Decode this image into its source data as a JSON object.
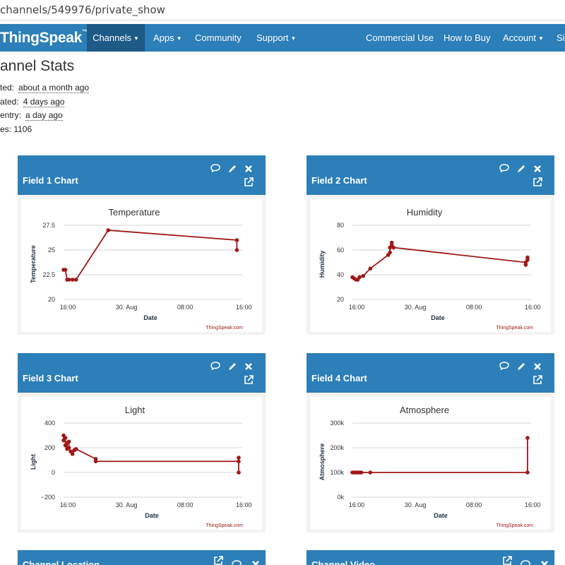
{
  "browser": {
    "url": "channels/549976/private_show"
  },
  "nav": {
    "brand": "ThingSpeak",
    "brand_tm": "™",
    "items": [
      {
        "label": "Channels",
        "dropdown": true,
        "active": true
      },
      {
        "label": "Apps",
        "dropdown": true
      },
      {
        "label": "Community"
      },
      {
        "label": "Support",
        "dropdown": true
      },
      {
        "label": "Commercial Use"
      },
      {
        "label": "How to Buy"
      },
      {
        "label": "Account",
        "dropdown": true
      },
      {
        "label": "Si"
      }
    ]
  },
  "stats": {
    "title": "annel Stats",
    "created_label": "ted:",
    "created_value": "about a month ago",
    "updated_label": "ated:",
    "updated_value": "4 days ago",
    "entry_label": "entry:",
    "entry_value": "a day ago",
    "entries_label": "es: ",
    "entries_value": "1106"
  },
  "cards": [
    {
      "title": "Field 1 Chart"
    },
    {
      "title": "Field 2 Chart"
    },
    {
      "title": "Field 3 Chart"
    },
    {
      "title": "Field 4 Chart"
    }
  ],
  "bottom_cards": [
    {
      "title": "Channel Location"
    },
    {
      "title": "Channel Video"
    }
  ],
  "colors": {
    "nav": "#2c7fb8",
    "nav_active": "#1d5a86",
    "series": "#a01818"
  },
  "chart_data": [
    {
      "type": "line",
      "title": "Temperature",
      "xlabel": "Date",
      "ylabel": "Temperature",
      "credit": "ThingSpeak.com",
      "x_ticks": [
        "16:00",
        "30. Aug",
        "08:00",
        "16:00"
      ],
      "y_ticks": [
        "27.5",
        "25",
        "22.5",
        "20"
      ],
      "ylim": [
        20,
        27.5
      ],
      "series": [
        {
          "x": [
            0.0,
            0.01,
            0.02,
            0.03,
            0.05,
            0.07,
            0.25,
            0.97,
            0.97
          ],
          "y": [
            23,
            23,
            22,
            22,
            22,
            22,
            27,
            26,
            25
          ]
        }
      ]
    },
    {
      "type": "line",
      "title": "Humidity",
      "xlabel": "Date",
      "ylabel": "Humidity",
      "credit": "ThingSpeak.com",
      "x_ticks": [
        "16:00",
        "30. Aug",
        "08:00",
        "16:00"
      ],
      "y_ticks": [
        "80",
        "60",
        "40",
        "20"
      ],
      "ylim": [
        20,
        80
      ],
      "series": [
        {
          "x": [
            0.0,
            0.01,
            0.02,
            0.03,
            0.04,
            0.06,
            0.1,
            0.2,
            0.21,
            0.21,
            0.22,
            0.22,
            0.23,
            0.97,
            0.97,
            0.98,
            0.98
          ],
          "y": [
            38,
            37,
            36,
            36,
            38,
            39,
            45,
            56,
            58,
            62,
            64,
            66,
            62,
            50,
            48,
            52,
            54
          ]
        }
      ]
    },
    {
      "type": "line",
      "title": "Light",
      "xlabel": "Date",
      "ylabel": "Light",
      "credit": "ThingSpeak.com",
      "x_ticks": [
        "16:00",
        "30. Aug",
        "08:00",
        "16:00"
      ],
      "y_ticks": [
        "400",
        "200",
        "0",
        "−200"
      ],
      "ylim": [
        -200,
        400
      ],
      "series": [
        {
          "x": [
            0.0,
            0.0,
            0.01,
            0.01,
            0.02,
            0.02,
            0.03,
            0.03,
            0.04,
            0.05,
            0.06,
            0.07,
            0.18,
            0.18,
            0.98,
            0.98,
            0.98
          ],
          "y": [
            300,
            260,
            280,
            220,
            190,
            240,
            250,
            200,
            170,
            150,
            180,
            190,
            110,
            90,
            90,
            120,
            0
          ]
        }
      ]
    },
    {
      "type": "line",
      "title": "Atmosphere",
      "xlabel": "Date",
      "ylabel": "Atmosphere",
      "credit": "ThingSpeak.com",
      "x_ticks": [
        "16:00",
        "30. Aug",
        "08:00",
        "16:00"
      ],
      "y_ticks": [
        "300k",
        "200k",
        "100k",
        "0k"
      ],
      "ylim": [
        0,
        300000
      ],
      "series": [
        {
          "x": [
            0.0,
            0.01,
            0.02,
            0.03,
            0.04,
            0.05,
            0.1,
            0.98,
            0.98
          ],
          "y": [
            100000,
            100000,
            100000,
            100000,
            100000,
            100000,
            100000,
            100000,
            240000
          ]
        }
      ]
    }
  ]
}
